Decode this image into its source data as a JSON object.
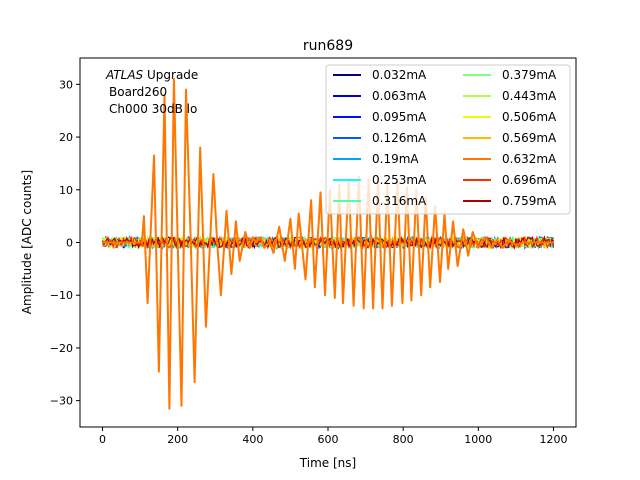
{
  "chart_data": {
    "type": "line",
    "title": "run689",
    "xlabel": "Time [ns]",
    "ylabel": "Amplitude [ADC counts]",
    "xlim": [
      -60,
      1260
    ],
    "ylim": [
      -35,
      35
    ],
    "xticks": [
      0,
      200,
      400,
      600,
      800,
      1000,
      1200
    ],
    "yticks": [
      -30,
      -20,
      -10,
      0,
      10,
      20,
      30
    ],
    "grid": false,
    "legend_position": "top-right",
    "annotation": {
      "italic": "ATLAS",
      "rest": " Upgrade",
      "line2": "Board260",
      "line3": "Ch000 30dB lo"
    },
    "series": [
      {
        "name": "0.032mA",
        "color": "#000080"
      },
      {
        "name": "0.063mA",
        "color": "#0000d1"
      },
      {
        "name": "0.095mA",
        "color": "#0010ff"
      },
      {
        "name": "0.126mA",
        "color": "#0058ff"
      },
      {
        "name": "0.19mA",
        "color": "#00a4ff"
      },
      {
        "name": "0.253mA",
        "color": "#13fcef"
      },
      {
        "name": "0.316mA",
        "color": "#4dffaa"
      },
      {
        "name": "0.379mA",
        "color": "#7dff7a"
      },
      {
        "name": "0.443mA",
        "color": "#b0ff47"
      },
      {
        "name": "0.506mA",
        "color": "#ebff0c"
      },
      {
        "name": "0.569mA",
        "color": "#ffb900"
      },
      {
        "name": "0.632mA",
        "color": "#ff7700"
      },
      {
        "name": "0.696mA",
        "color": "#ff3000"
      },
      {
        "name": "0.759mA",
        "color": "#b20000"
      }
    ],
    "noise_amplitude": 1.0,
    "signal_series": "0.632mA",
    "signal_points": [
      [
        0,
        0
      ],
      [
        105,
        0
      ],
      [
        110,
        5
      ],
      [
        120,
        -11.5
      ],
      [
        137,
        16.5
      ],
      [
        150,
        -24.5
      ],
      [
        165,
        28
      ],
      [
        178,
        -31.5
      ],
      [
        190,
        31
      ],
      [
        200,
        0
      ],
      [
        210,
        -31
      ],
      [
        222,
        29
      ],
      [
        235,
        0
      ],
      [
        245,
        -26.5
      ],
      [
        260,
        18
      ],
      [
        275,
        -16
      ],
      [
        295,
        13
      ],
      [
        305,
        0
      ],
      [
        315,
        -10
      ],
      [
        330,
        6
      ],
      [
        343,
        -6
      ],
      [
        355,
        4
      ],
      [
        365,
        -3.5
      ],
      [
        380,
        2
      ],
      [
        392,
        -1
      ],
      [
        400,
        1
      ],
      [
        408,
        0
      ],
      [
        420,
        1
      ],
      [
        430,
        -1
      ],
      [
        445,
        0
      ],
      [
        455,
        -2
      ],
      [
        470,
        3
      ],
      [
        485,
        -3.5
      ],
      [
        500,
        4.5
      ],
      [
        512,
        -5
      ],
      [
        522,
        5.5
      ],
      [
        540,
        -7
      ],
      [
        555,
        8
      ],
      [
        565,
        -8.5
      ],
      [
        580,
        9.5
      ],
      [
        592,
        -10
      ],
      [
        605,
        10
      ],
      [
        618,
        -10.5
      ],
      [
        630,
        11
      ],
      [
        640,
        -11.5
      ],
      [
        655,
        12
      ],
      [
        668,
        -12
      ],
      [
        682,
        12.5
      ],
      [
        695,
        -12.5
      ],
      [
        708,
        12
      ],
      [
        720,
        -12.5
      ],
      [
        733,
        12
      ],
      [
        745,
        -12.5
      ],
      [
        758,
        11.5
      ],
      [
        770,
        -12
      ],
      [
        785,
        11.5
      ],
      [
        798,
        -11.5
      ],
      [
        810,
        10.5
      ],
      [
        822,
        -11
      ],
      [
        835,
        10
      ],
      [
        848,
        -10
      ],
      [
        860,
        8.5
      ],
      [
        872,
        -8.5
      ],
      [
        885,
        7
      ],
      [
        898,
        -7.5
      ],
      [
        910,
        5.5
      ],
      [
        920,
        -5
      ],
      [
        933,
        4
      ],
      [
        945,
        -4.5
      ],
      [
        960,
        2.5
      ],
      [
        973,
        -2.5
      ],
      [
        985,
        2
      ],
      [
        1000,
        -1
      ],
      [
        1010,
        0
      ],
      [
        1020,
        1
      ],
      [
        1035,
        -1
      ],
      [
        1050,
        0.5
      ],
      [
        1065,
        -1
      ],
      [
        1080,
        0.5
      ],
      [
        1100,
        -0.5
      ],
      [
        1120,
        0
      ],
      [
        1150,
        0
      ],
      [
        1200,
        0
      ]
    ]
  }
}
